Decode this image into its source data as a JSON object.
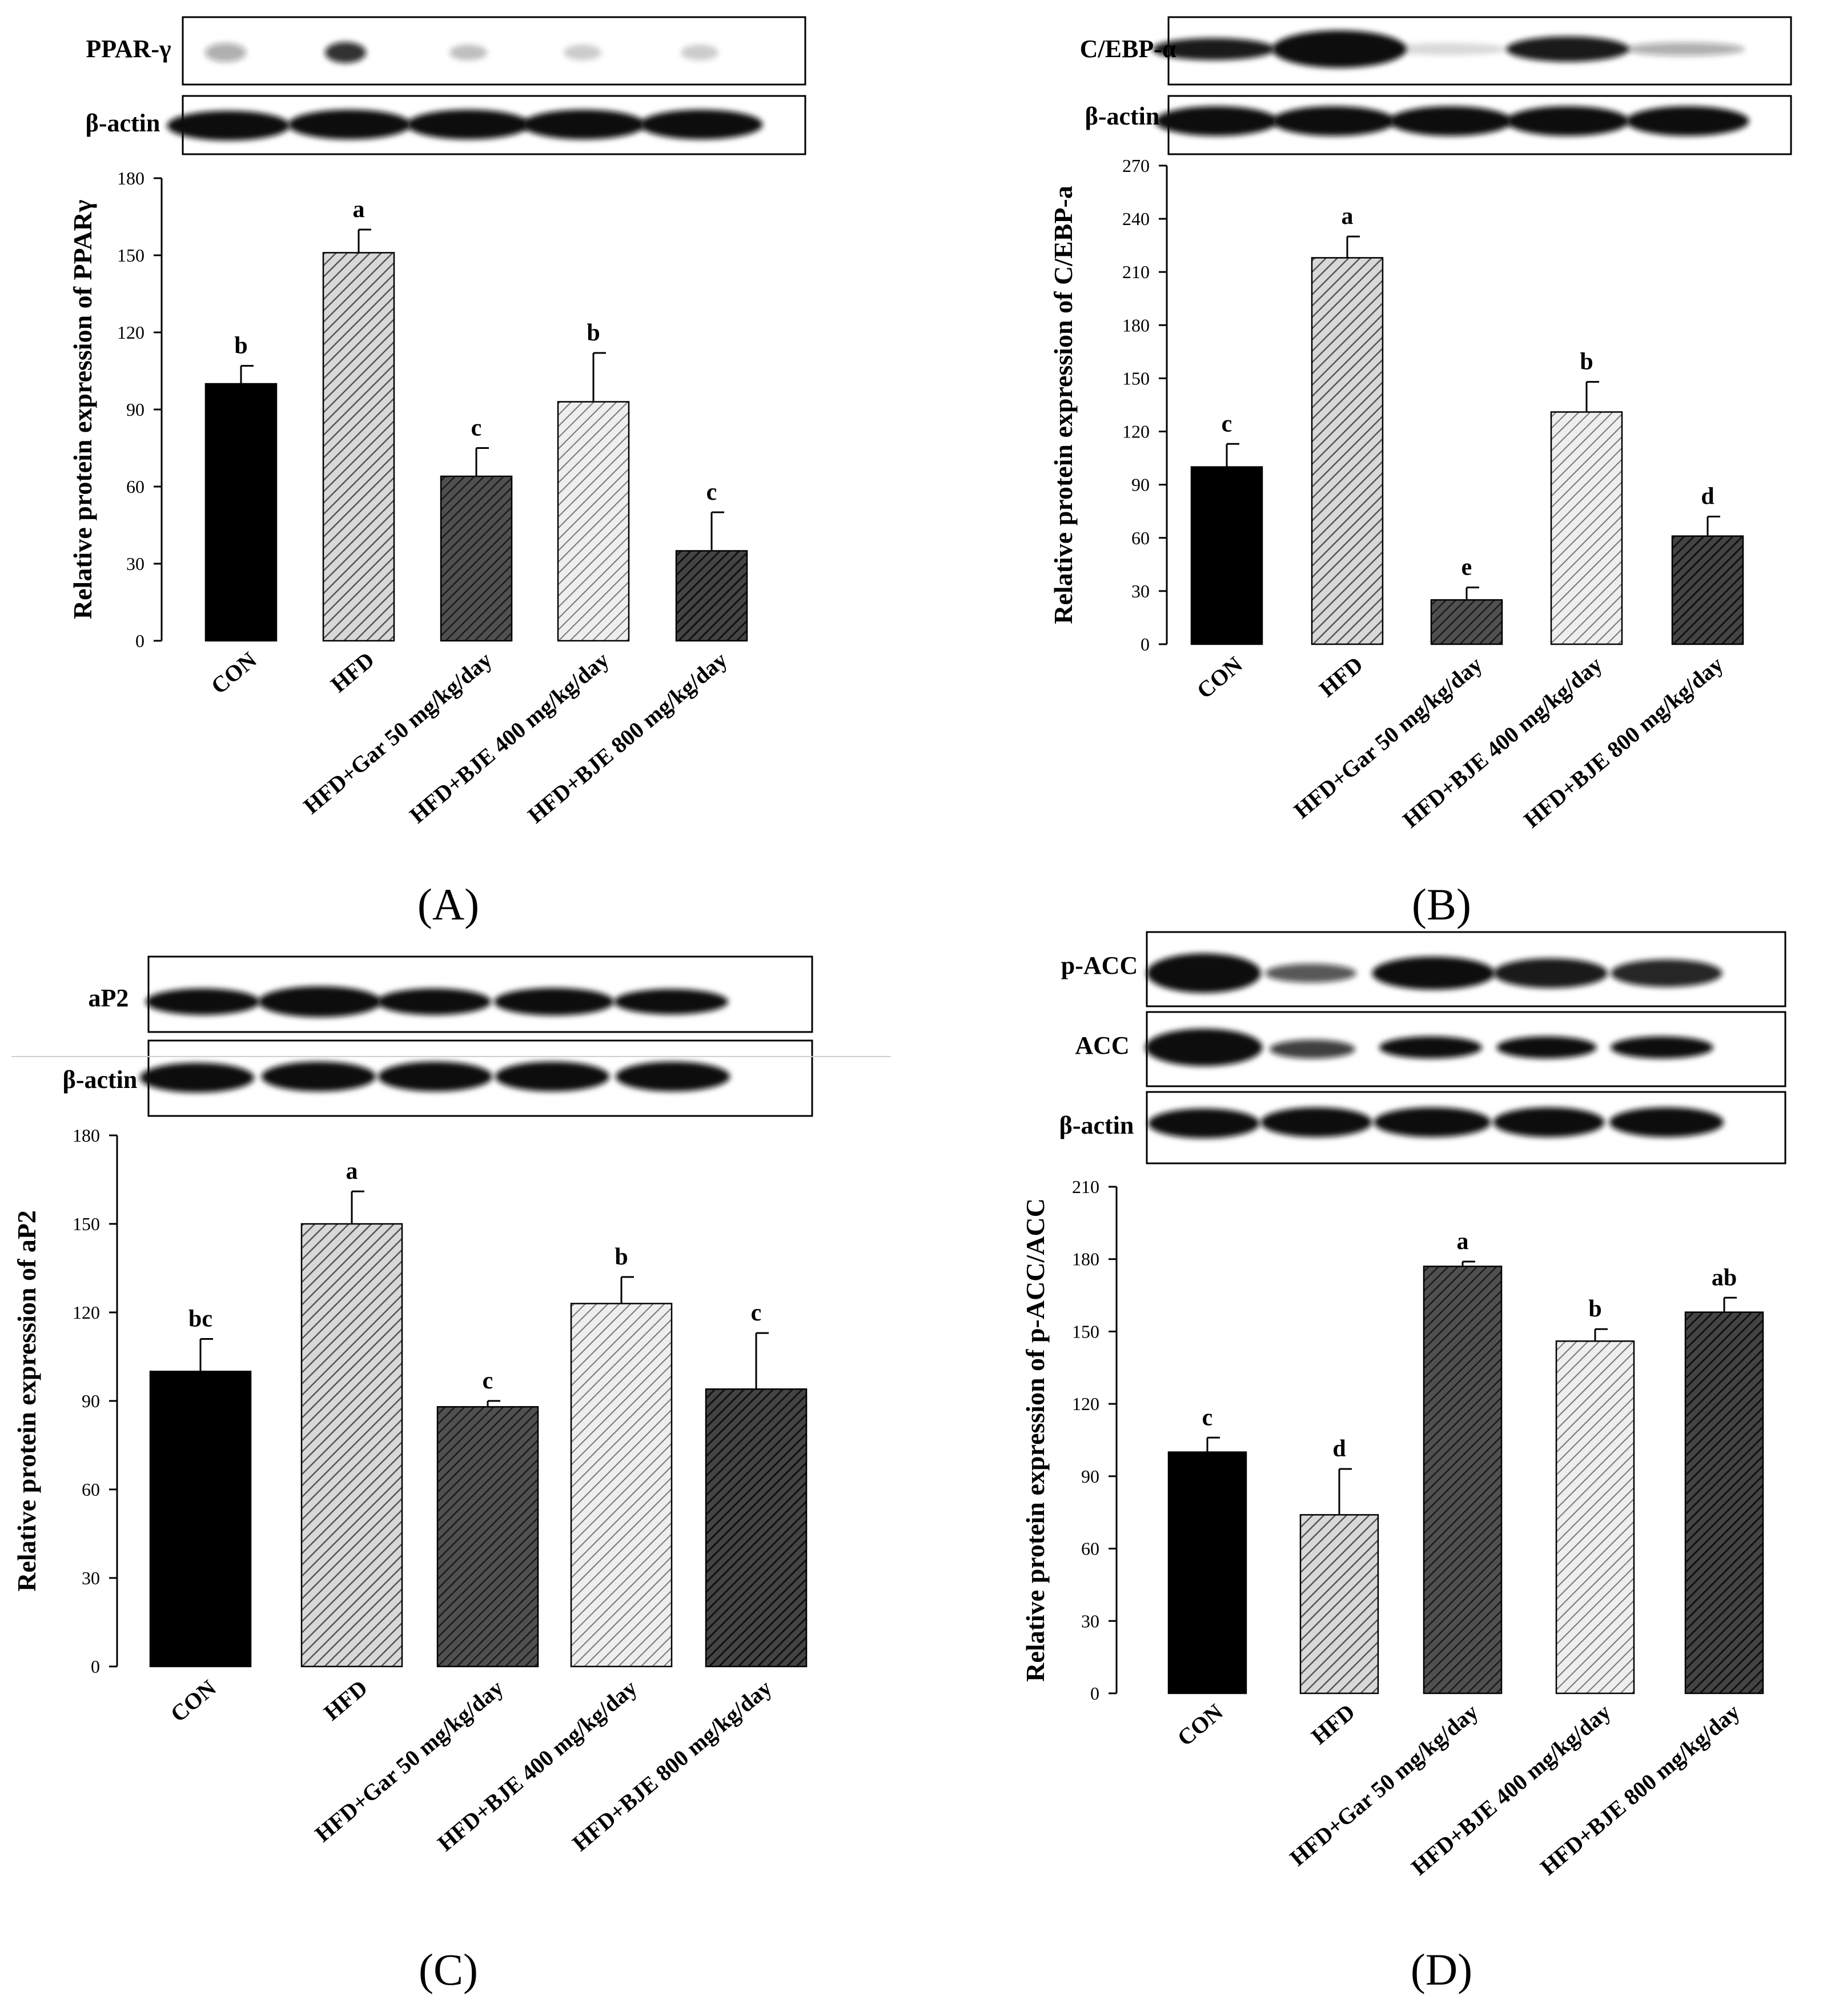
{
  "colors": {
    "bar_con": "#000000",
    "bar_hfd": "#b4b4b4",
    "bar_gar": "#3c3c3c",
    "bar_bje400": "#d2d2d2",
    "bar_bje800": "#2d2d2d",
    "band": "#111111"
  },
  "chart_data": [
    {
      "type": "bar",
      "panel": "(A)",
      "blots": [
        "PPAR-γ",
        "β-actin"
      ],
      "ylabel": "Relative protein expression of PPARγ",
      "ylim": [
        0,
        180
      ],
      "yticks": [
        "0",
        "30",
        "60",
        "90",
        "120",
        "150",
        "180"
      ],
      "categories": [
        "CON",
        "HFD",
        "HFD+Gar 50 mg/kg/day",
        "HFD+BJE 400 mg/kg/day",
        "HFD+BJE 800 mg/kg/day"
      ],
      "values": [
        100,
        151,
        64,
        93,
        35
      ],
      "errors": [
        7,
        9,
        11,
        19,
        15
      ],
      "significance": [
        "b",
        "a",
        "c",
        "b",
        "c"
      ]
    },
    {
      "type": "bar",
      "panel": "(B)",
      "blots": [
        "C/EBP-α",
        "β-actin"
      ],
      "ylabel": "Relative protein expression of C/EBP-a",
      "ylim": [
        0,
        270
      ],
      "yticks": [
        "0",
        "30",
        "60",
        "90",
        "120",
        "150",
        "180",
        "210",
        "240",
        "270"
      ],
      "categories": [
        "CON",
        "HFD",
        "HFD+Gar 50 mg/kg/day",
        "HFD+BJE 400 mg/kg/day",
        "HFD+BJE 800 mg/kg/day"
      ],
      "values": [
        100,
        218,
        25,
        131,
        61
      ],
      "errors": [
        13,
        12,
        7,
        17,
        11
      ],
      "significance": [
        "c",
        "a",
        "e",
        "b",
        "d"
      ]
    },
    {
      "type": "bar",
      "panel": "(C)",
      "blots": [
        "aP2",
        "β-actin"
      ],
      "ylabel": "Relative protein expression of aP2",
      "ylim": [
        0,
        180
      ],
      "yticks": [
        "0",
        "30",
        "60",
        "90",
        "120",
        "150",
        "180"
      ],
      "categories": [
        "CON",
        "HFD",
        "HFD+Gar 50 mg/kg/day",
        "HFD+BJE 400 mg/kg/day",
        "HFD+BJE 800 mg/kg/day"
      ],
      "values": [
        100,
        150,
        88,
        123,
        94
      ],
      "errors": [
        11,
        11,
        2,
        9,
        19
      ],
      "significance": [
        "bc",
        "a",
        "c",
        "b",
        "c"
      ]
    },
    {
      "type": "bar",
      "panel": "(D)",
      "blots": [
        "p-ACC",
        "ACC",
        "β-actin"
      ],
      "ylabel": "Relative protein expression of p-ACC/ACC",
      "ylim": [
        0,
        210
      ],
      "yticks": [
        "0",
        "30",
        "60",
        "90",
        "120",
        "150",
        "180",
        "210"
      ],
      "categories": [
        "CON",
        "HFD",
        "HFD+Gar 50 mg/kg/day",
        "HFD+BJE 400 mg/kg/day",
        "HFD+BJE 800 mg/kg/day"
      ],
      "values": [
        100,
        74,
        177,
        146,
        158
      ],
      "errors": [
        6,
        19,
        2,
        5,
        6
      ],
      "significance": [
        "c",
        "d",
        "a",
        "b",
        "ab"
      ]
    }
  ]
}
